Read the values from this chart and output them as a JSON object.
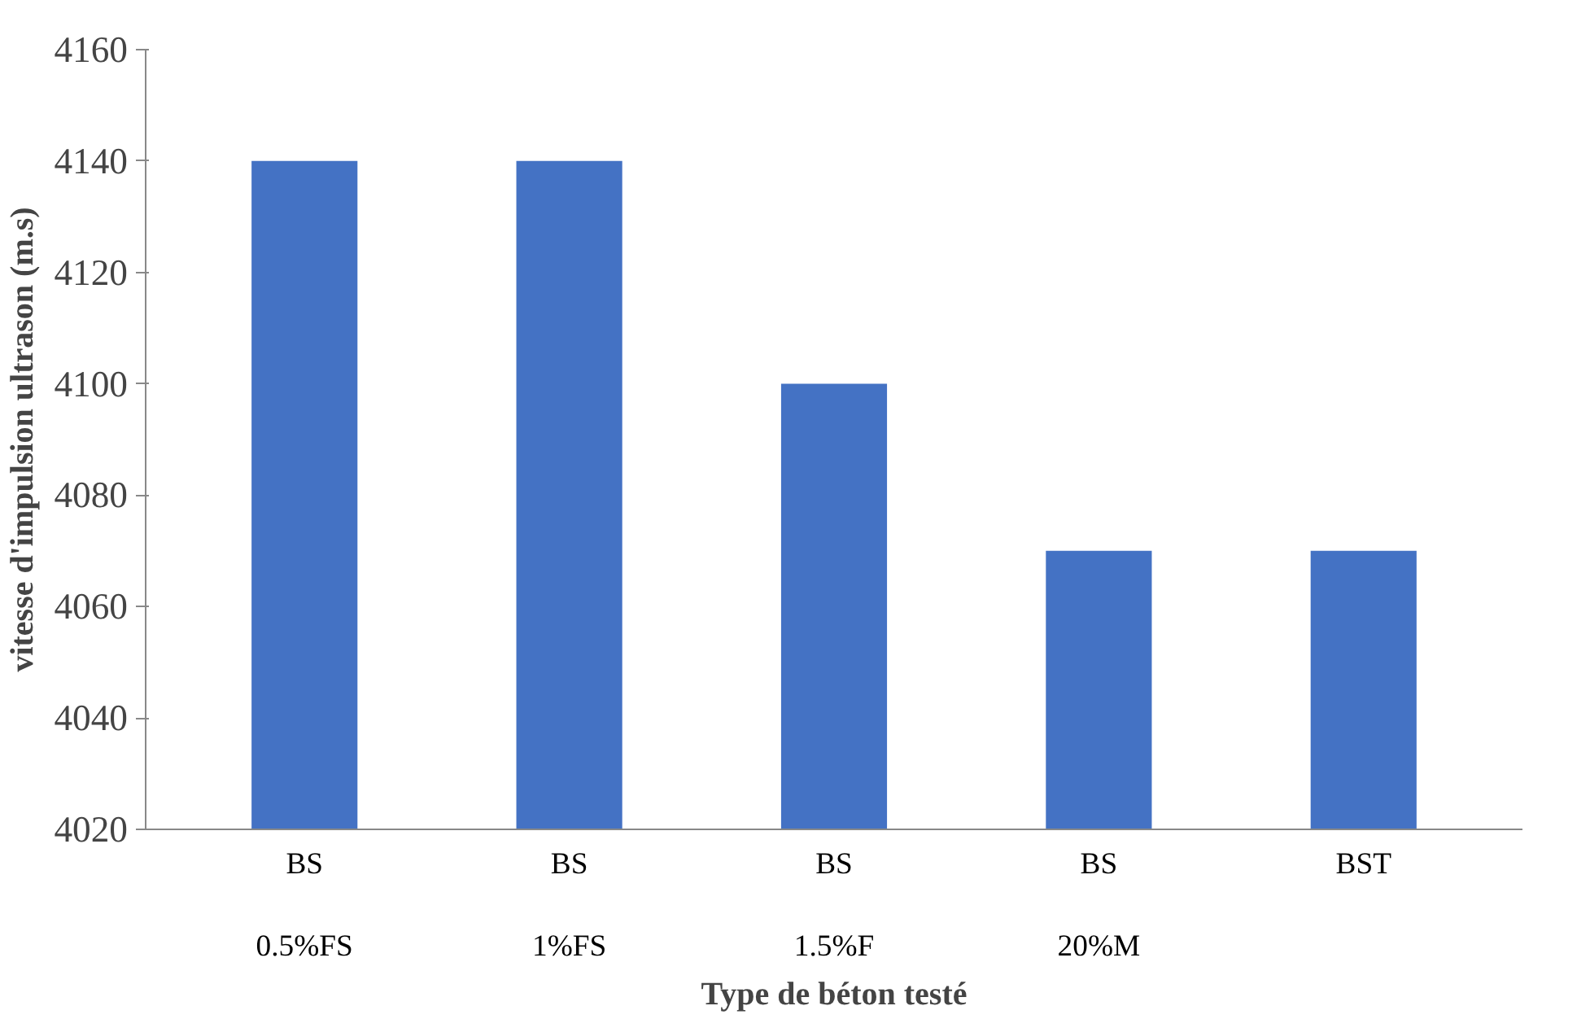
{
  "chart_data": {
    "type": "bar",
    "xlabel": "Type de béton testé",
    "ylabel": "vitesse d'impulsion ultrason (m.s)",
    "categories": [
      "BS\n\n0.5%FS",
      "BS\n\n1%FS",
      "BS\n\n1.5%F",
      "BS\n\n20%M",
      "BST"
    ],
    "values": [
      4140,
      4140,
      4100,
      4070,
      4070
    ],
    "color": "#4472c4",
    "ylim": [
      4020,
      4160
    ],
    "yticks": [
      4020,
      4040,
      4060,
      4080,
      4100,
      4120,
      4140,
      4160
    ],
    "grid": false
  }
}
